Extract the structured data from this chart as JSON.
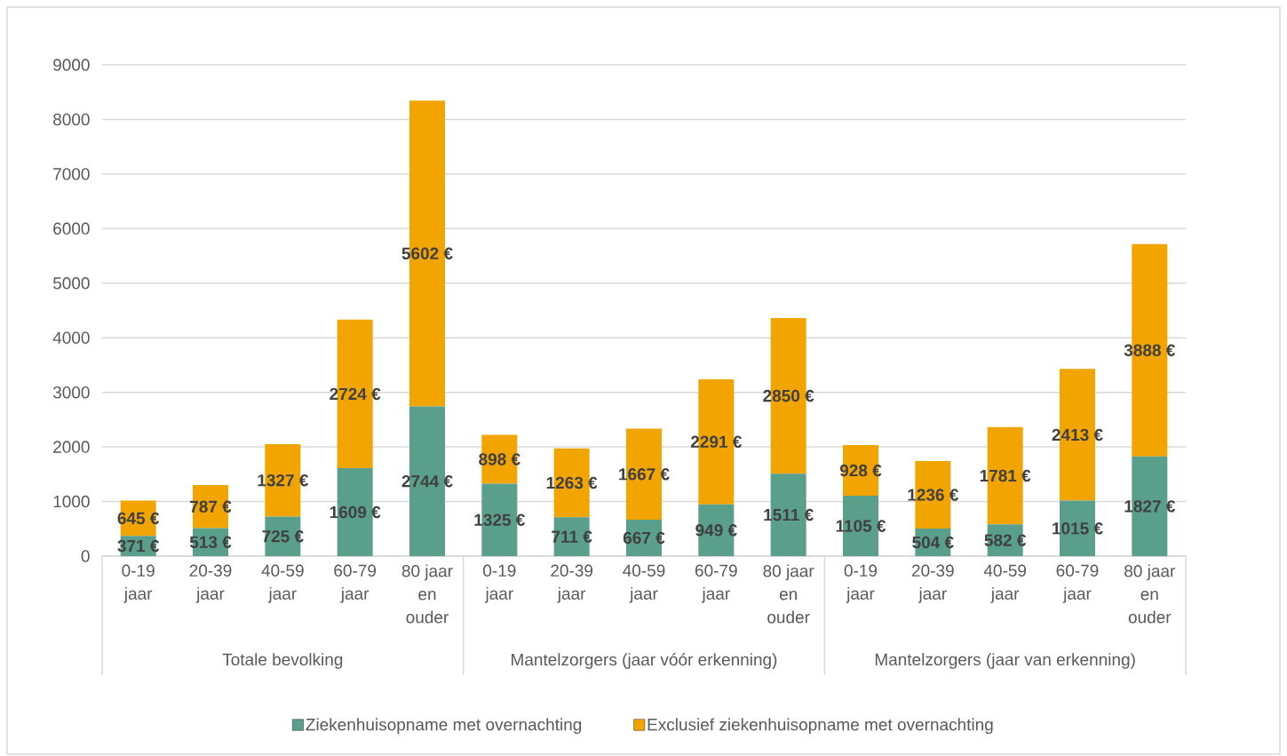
{
  "chart_data": {
    "type": "bar",
    "stacked": true,
    "categories": [
      "0-19 jaar",
      "20-39 jaar",
      "40-59 jaar",
      "60-79 jaar",
      "80 jaar en ouder",
      "0-19 jaar",
      "20-39 jaar",
      "40-59 jaar",
      "60-79 jaar",
      "80 jaar en ouder",
      "0-19 jaar",
      "20-39 jaar",
      "40-59 jaar",
      "60-79 jaar",
      "80 jaar en ouder"
    ],
    "series": [
      {
        "name": "Ziekenhuisopname met overnachting",
        "color": "#5a9f8b",
        "values": [
          371,
          513,
          725,
          1609,
          2744,
          1325,
          711,
          667,
          949,
          1511,
          1105,
          504,
          582,
          1015,
          1827
        ],
        "value_labels": [
          "371 €",
          "513 €",
          "725 €",
          "1609 €",
          "2744 €",
          "1325 €",
          "711 €",
          "667 €",
          "949 €",
          "1511 €",
          "1105 €",
          "504 €",
          "582 €",
          "1015 €",
          "1827 €"
        ]
      },
      {
        "name": "Exclusief ziekenhuisopname met overnachting",
        "color": "#f2a500",
        "values": [
          645,
          787,
          1327,
          2724,
          5602,
          898,
          1263,
          1667,
          2291,
          2850,
          928,
          1236,
          1781,
          2413,
          3888
        ],
        "value_labels": [
          "645 €",
          "787 €",
          "1327 €",
          "2724 €",
          "5602 €",
          "898 €",
          "1263 €",
          "1667 €",
          "2291 €",
          "2850 €",
          "928 €",
          "1236 €",
          "1781 €",
          "2413 €",
          "3888 €"
        ]
      }
    ],
    "ylim": [
      0,
      9000
    ],
    "yticks": [
      0,
      1000,
      2000,
      3000,
      4000,
      5000,
      6000,
      7000,
      8000,
      9000
    ],
    "grid": "y",
    "legend": "bottom",
    "annotations": [
      "Totale bevolking",
      "Mantelzorgers (jaar vóór erkenning)",
      "Mantelzorgers (jaar van erkenning)"
    ]
  }
}
